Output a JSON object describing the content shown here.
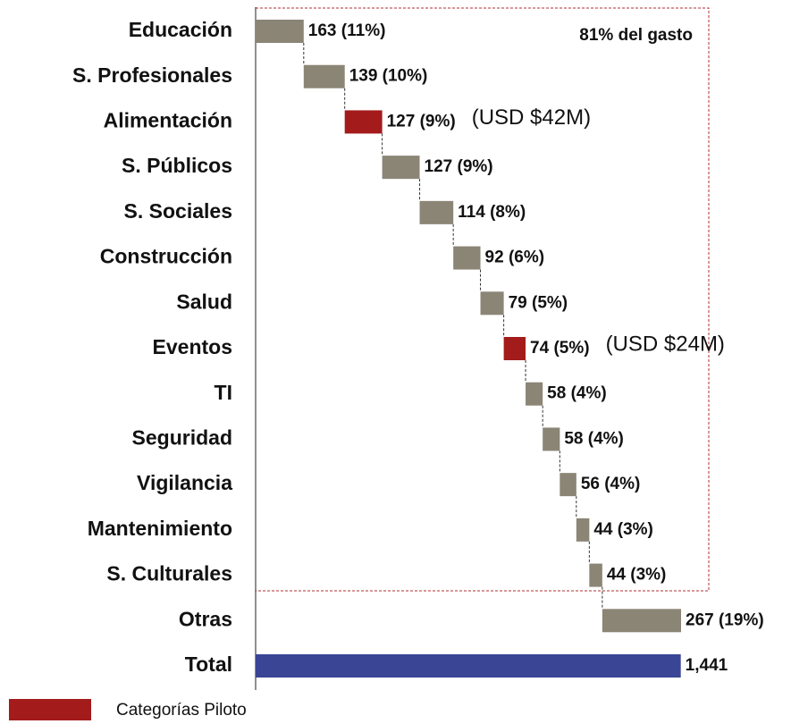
{
  "chart_data": {
    "type": "waterfall",
    "categories": [
      "Educación",
      "S. Profesionales",
      "Alimentación",
      "S. Públicos",
      "S. Sociales",
      "Construcción",
      "Salud",
      "Eventos",
      "TI",
      "Seguridad",
      "Vigilancia",
      "Mantenimiento",
      "S. Culturales",
      "Otras",
      "Total"
    ],
    "values": [
      163,
      139,
      127,
      127,
      114,
      92,
      79,
      74,
      58,
      58,
      56,
      44,
      44,
      267,
      1441
    ],
    "value_labels": [
      "163 (11%)",
      "139 (10%)",
      "127 (9%)",
      "127 (9%)",
      "114 (8%)",
      "92 (6%)",
      "79 (5%)",
      "74 (5%)",
      "58 (4%)",
      "58 (4%)",
      "56 (4%)",
      "44 (3%)",
      "44 (3%)",
      "267 (19%)",
      "1,441"
    ],
    "colors": [
      "#8b8576",
      "#8b8576",
      "#a31b1b",
      "#8b8576",
      "#8b8576",
      "#8b8576",
      "#8b8576",
      "#a31b1b",
      "#8b8576",
      "#8b8576",
      "#8b8576",
      "#8b8576",
      "#8b8576",
      "#8b8576",
      "#3a4595"
    ],
    "total_category": "Total",
    "xlim": [
      0,
      1442
    ],
    "box_label": "81% del gasto",
    "annotations": [
      {
        "category": "Alimentación",
        "text": "(USD $42M)"
      },
      {
        "category": "Eventos",
        "text": "(USD $24M)"
      }
    ],
    "legend": {
      "label": "Categorías Piloto",
      "color": "#a31b1b"
    }
  }
}
